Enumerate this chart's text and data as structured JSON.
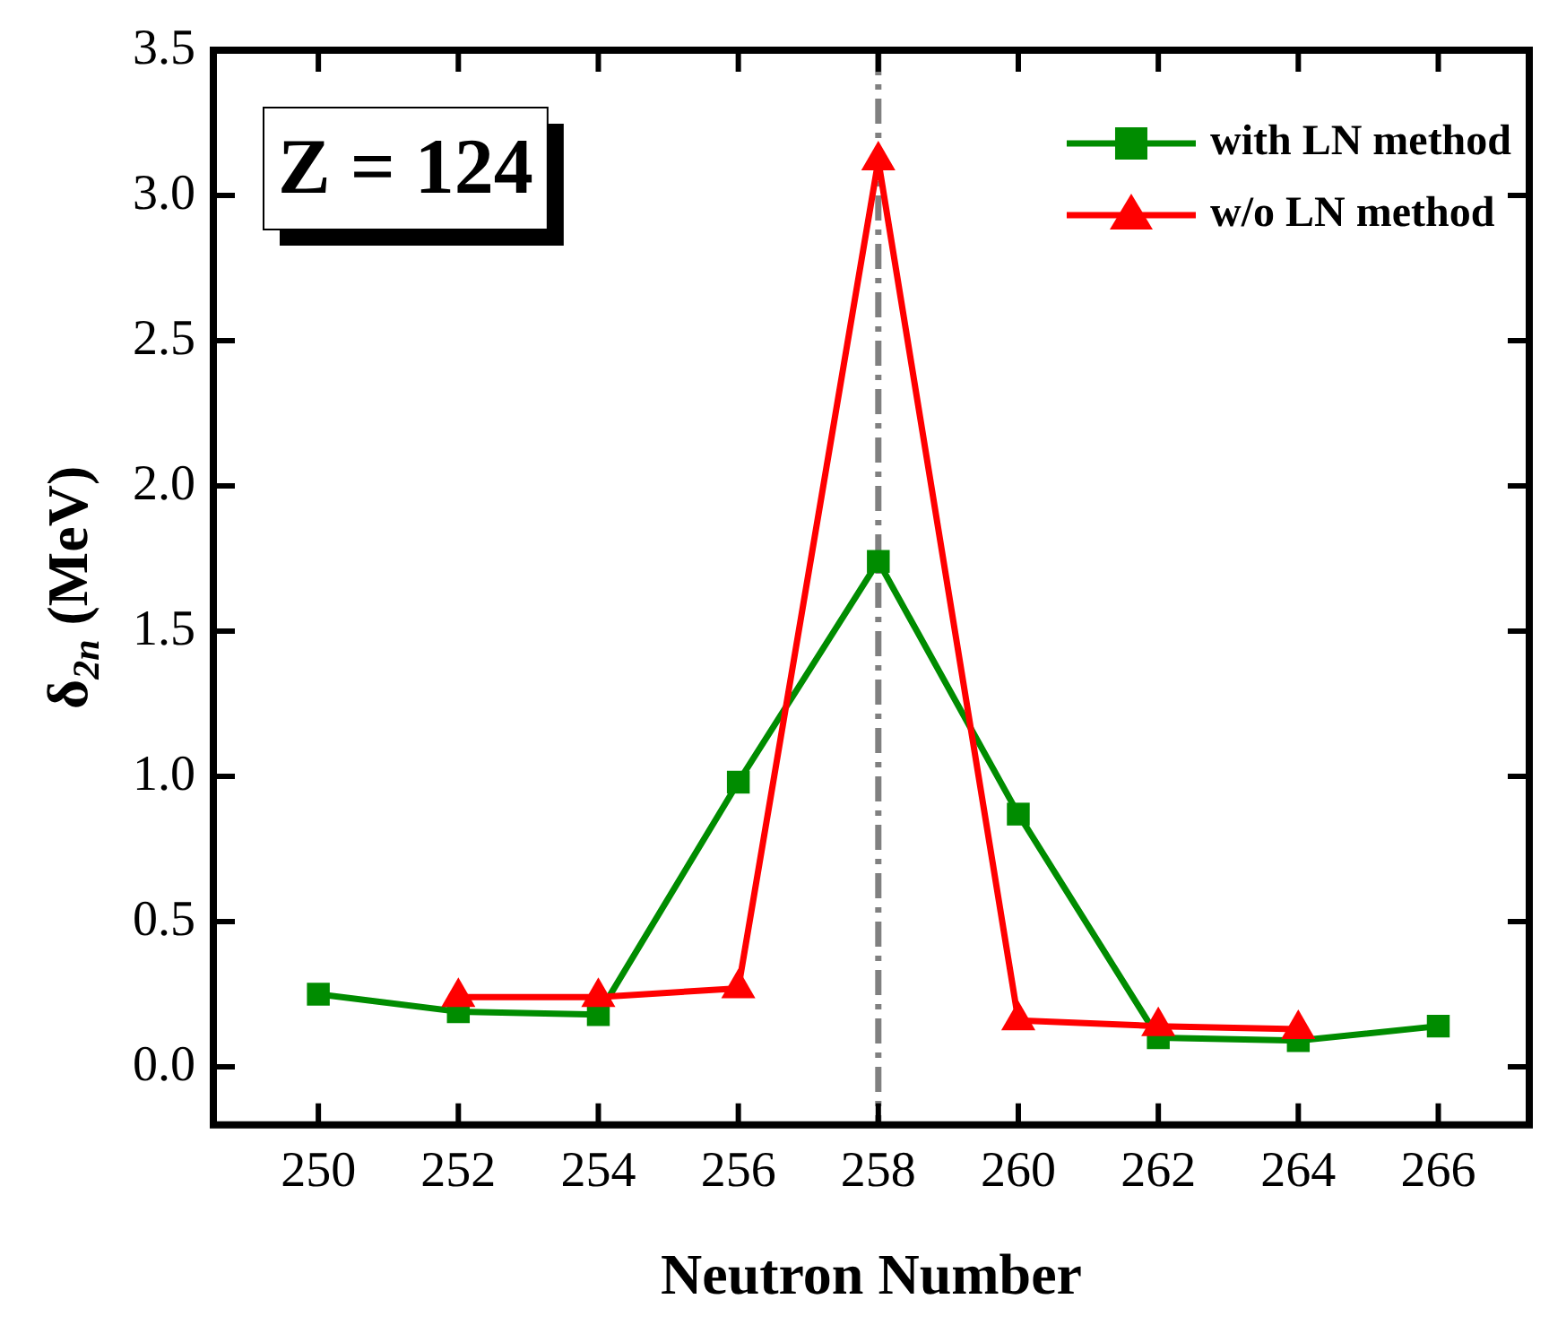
{
  "chart_data": {
    "type": "line",
    "xlabel": "Neutron Number",
    "ylabel": "δ$_{2n}$ (MeV)",
    "annotations": [
      "Z = 124"
    ],
    "x": [
      250,
      252,
      254,
      256,
      258,
      260,
      262,
      264,
      266
    ],
    "series": [
      {
        "name": "with LN method",
        "color": "#008c00",
        "marker": "square",
        "values": [
          0.25,
          0.19,
          0.18,
          0.98,
          1.74,
          0.87,
          0.1,
          0.09,
          0.14
        ]
      },
      {
        "name": "w/o LN method",
        "color": "#ff0000",
        "marker": "triangle",
        "values": [
          null,
          0.24,
          0.24,
          0.27,
          3.12,
          0.16,
          0.14,
          0.13,
          null
        ]
      }
    ],
    "xlim": [
      248.5,
      267.3
    ],
    "xticks": [
      250,
      252,
      254,
      256,
      258,
      260,
      262,
      264,
      266
    ],
    "ylim": [
      -0.2,
      3.5
    ],
    "yticks": [
      {
        "value": 0,
        "label": "0.0"
      },
      {
        "value": 0.5,
        "label": "0.5"
      },
      {
        "value": 1,
        "label": "1.0"
      },
      {
        "value": 1.5,
        "label": "1.5"
      },
      {
        "value": 2,
        "label": "2.0"
      },
      {
        "value": 2.5,
        "label": "2.5"
      },
      {
        "value": 3,
        "label": "3.0"
      },
      {
        "value": 3.5,
        "label": "3.5"
      }
    ],
    "ref_lines": [
      {
        "axis": "x",
        "value": 258,
        "color": "#808080",
        "line_style": "dashed"
      }
    ],
    "grid": false,
    "legend": "top right",
    "line_style": "solid"
  }
}
